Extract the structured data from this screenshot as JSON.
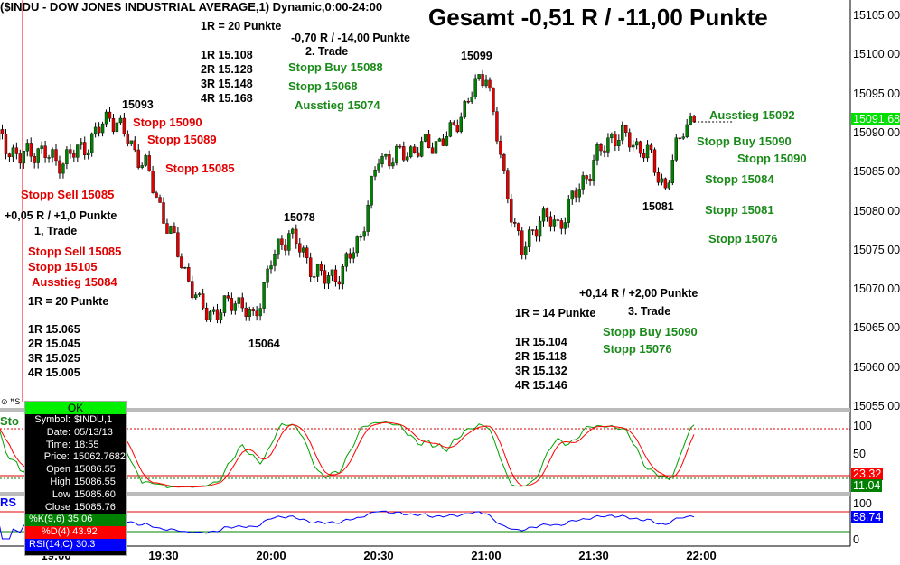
{
  "title": "($INDU - DOW JONES INDUSTRIAL AVERAGE,1) Dynamic,0:00-24:00",
  "gesamt": "Gesamt -0,51 R / -11,00 Punkte",
  "annotations": [
    "1R = 20 Punkte",
    "-0,70 R / -14,00 Punkte",
    "2. Trade",
    "1R 15.108",
    "2R 15.128",
    "3R 15.148",
    "4R 15.168",
    "Stopp Buy 15088",
    "Stopp 15068",
    "Ausstieg 15074",
    "15099",
    "15093",
    "15078",
    "15064",
    "15081",
    "Stopp 15090",
    "Stopp 15089",
    "Stopp 15085",
    "Stopp Sell 15085",
    "+0,05 R / +1,0 Punkte",
    "1, Trade",
    "Stopp Sell 15085",
    "Stopp 15105",
    "Ausstieg 15084",
    "1R = 20 Punkte",
    "1R 15.065",
    "2R 15.045",
    "3R 15.025",
    "4R 15.005",
    "1R = 14 Punkte",
    "1R 15.104",
    "2R 15.118",
    "3R 15.132",
    "4R 15.146",
    "+0,14 R / +2,00 Punkte",
    "3. Trade",
    "Stopp Buy 15090",
    "Stopp 15076",
    "Ausstieg 15092",
    "Stopp Buy 15090",
    "Stopp 15090",
    "Stopp 15084",
    "Stopp 15081",
    "Stopp 15076"
  ],
  "info": {
    "ok": "OK",
    "rows": [
      [
        "Symbol:",
        "$INDU,1"
      ],
      [
        "Date:",
        "05/13/13"
      ],
      [
        "Time:",
        "18:55"
      ],
      [
        "Price:",
        "15062.7682"
      ],
      [
        "Open",
        "15086.55"
      ],
      [
        "High",
        "15086.55"
      ],
      [
        "Low",
        "15085.60"
      ],
      [
        "Close",
        "15085.76"
      ]
    ],
    "k": "%K(9,6) 35.06",
    "d": "%D(4) 43.92",
    "rsi": "RSI(14,C) 30.3"
  },
  "panels": {
    "stoch": "Sto",
    "rsi": "RS"
  },
  "tags": {
    "price": "15091.68",
    "d": "23.32",
    "k": "11.04",
    "rsi": "58.74"
  },
  "colors": {
    "up": "#008000",
    "down": "#e00000",
    "k": "#00a000",
    "d": "#ff0000",
    "rsi": "#0000ff"
  },
  "chart_data": {
    "type": "candlestick",
    "interval_minutes": 1,
    "price_axis": {
      "ylim": [
        15055,
        15105
      ],
      "ticks": [
        "15105.00",
        "15100.00",
        "15095.00",
        "15090.00",
        "15085.00",
        "15080.00",
        "15075.00",
        "15070.00",
        "15065.00",
        "15060.00",
        "15055.00"
      ]
    },
    "stoch_axis": {
      "ticks": [
        "100",
        "50"
      ],
      "levels": [
        80,
        20
      ]
    },
    "rsi_axis": {
      "ticks": [
        "100",
        "0"
      ],
      "levels": [
        70,
        30
      ]
    },
    "time_ticks": [
      "19:00",
      "19:30",
      "20:00",
      "20:30",
      "21:00",
      "21:30",
      "22:00"
    ],
    "start": "18:44",
    "end": "21:58",
    "waypoints": [
      [
        "18:44",
        15089.2
      ],
      [
        "18:50",
        15086.9
      ],
      [
        "18:55",
        15088
      ],
      [
        "19:00",
        15086.3
      ],
      [
        "19:05",
        15087.4
      ],
      [
        "19:10",
        15089.2
      ],
      [
        "19:15",
        15092.5
      ],
      [
        "19:20",
        15089.2
      ],
      [
        "19:25",
        15085.7
      ],
      [
        "19:30",
        15079.4
      ],
      [
        "19:35",
        15073.6
      ],
      [
        "19:40",
        15067.8
      ],
      [
        "19:45",
        15066.9
      ],
      [
        "19:50",
        15069
      ],
      [
        "19:55",
        15066
      ],
      [
        "20:00",
        15073.6
      ],
      [
        "20:05",
        15077.5
      ],
      [
        "20:10",
        15073.6
      ],
      [
        "20:15",
        15071.3
      ],
      [
        "20:20",
        15072.4
      ],
      [
        "20:25",
        15077
      ],
      [
        "20:30",
        15086.9
      ],
      [
        "20:35",
        15087
      ],
      [
        "20:40",
        15088
      ],
      [
        "20:45",
        15088.6
      ],
      [
        "20:50",
        15089.8
      ],
      [
        "20:55",
        15094.4
      ],
      [
        "21:00",
        15098
      ],
      [
        "21:05",
        15084
      ],
      [
        "21:10",
        15074.7
      ],
      [
        "21:15",
        15079.4
      ],
      [
        "21:20",
        15078.2
      ],
      [
        "21:25",
        15082.3
      ],
      [
        "21:30",
        15086.3
      ],
      [
        "21:35",
        15089.8
      ],
      [
        "21:40",
        15089.2
      ],
      [
        "21:45",
        15087.4
      ],
      [
        "21:50",
        15083
      ],
      [
        "21:55",
        15091
      ],
      [
        "21:58",
        15092
      ]
    ]
  }
}
